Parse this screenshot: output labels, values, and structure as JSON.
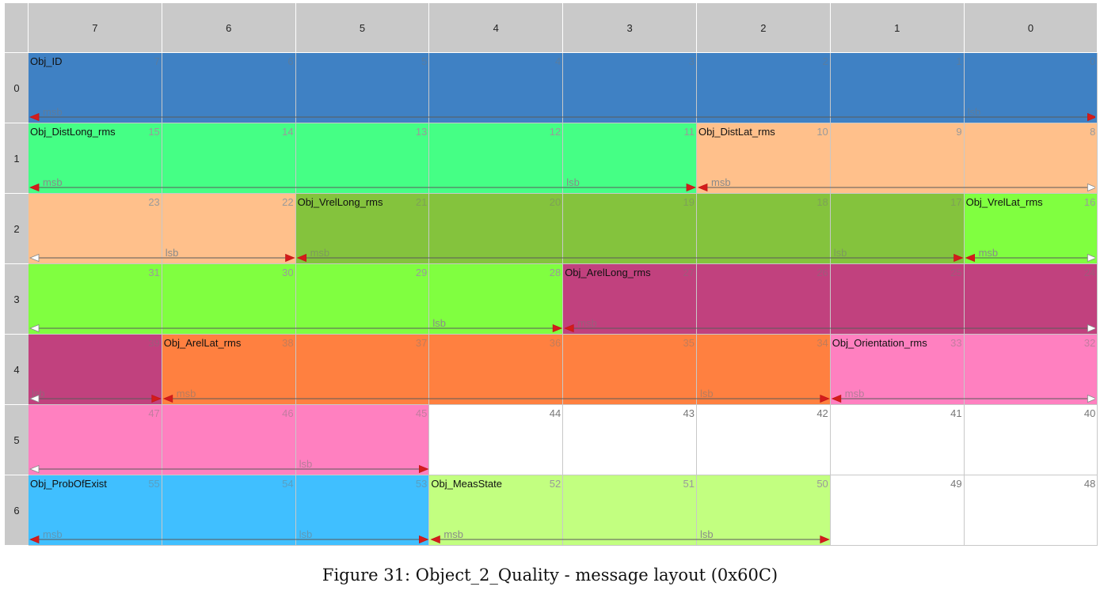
{
  "columns": [
    "7",
    "6",
    "5",
    "4",
    "3",
    "2",
    "1",
    "0"
  ],
  "rows": [
    "0",
    "1",
    "2",
    "3",
    "4",
    "5",
    "6"
  ],
  "signals": [
    {
      "id": "obj-id",
      "name": "Obj_ID",
      "msb_bit": 7,
      "lsb_bit": 0,
      "color": "#3f81c4",
      "msb_label": "msb",
      "lsb_label": "lsb",
      "faint": true
    },
    {
      "id": "obj-distlong-rms",
      "name": "Obj_DistLong_rms",
      "msb_bit": 15,
      "lsb_bit": 11,
      "color": "#45ff85",
      "msb_label": "msb",
      "lsb_label": "lsb",
      "faint": false
    },
    {
      "id": "obj-distlat-rms",
      "name": "Obj_DistLat_rms",
      "msb_bit": 10,
      "lsb_bit": 22,
      "color": "#ffc08b",
      "msb_label": "msb",
      "lsb_label": "lsb",
      "faint": false
    },
    {
      "id": "obj-vrellong-rms",
      "name": "Obj_VrelLong_rms",
      "msb_bit": 21,
      "lsb_bit": 17,
      "color": "#84c33d",
      "msb_label": "msb",
      "lsb_label": "lsb",
      "faint": true
    },
    {
      "id": "obj-vrellat-rms",
      "name": "Obj_VrelLat_rms",
      "msb_bit": 16,
      "lsb_bit": 28,
      "color": "#80ff40",
      "msb_label": "msb",
      "lsb_label": "lsb",
      "faint": false
    },
    {
      "id": "obj-arellong-rms",
      "name": "Obj_ArelLong_rms",
      "msb_bit": 27,
      "lsb_bit": 39,
      "color": "#c1417e",
      "msb_label": "msb",
      "lsb_label": "lsb",
      "faint": true
    },
    {
      "id": "obj-arellat-rms",
      "name": "Obj_ArelLat_rms",
      "msb_bit": 38,
      "lsb_bit": 34,
      "color": "#ff8040",
      "msb_label": "msb",
      "lsb_label": "lsb",
      "faint": true
    },
    {
      "id": "obj-orientation-rms",
      "name": "Obj_Orientation_rms",
      "msb_bit": 33,
      "lsb_bit": 45,
      "color": "#ff80c0",
      "msb_label": "msb",
      "lsb_label": "lsb",
      "faint": true
    },
    {
      "id": "obj-probofexist",
      "name": "Obj_ProbOfExist",
      "msb_bit": 55,
      "lsb_bit": 53,
      "color": "#40bfff",
      "msb_label": "msb",
      "lsb_label": "lsb",
      "faint": true
    },
    {
      "id": "obj-measstate",
      "name": "Obj_MeasState",
      "msb_bit": 52,
      "lsb_bit": 50,
      "color": "#c2ff80",
      "msb_label": "msb",
      "lsb_label": "lsb",
      "faint": false
    }
  ],
  "caption": "Figure 31: Object_2_Quality - message layout (0x60C)"
}
